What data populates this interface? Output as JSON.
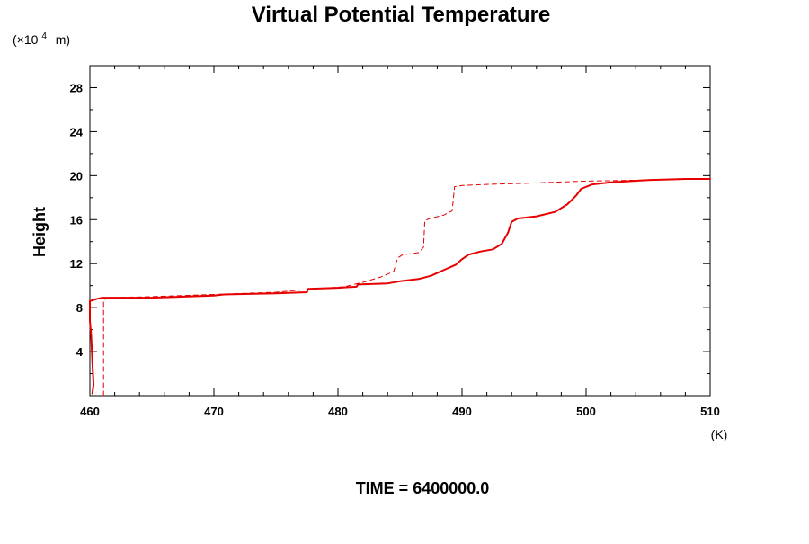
{
  "chart_data": {
    "type": "line",
    "title": "Virtual Potential Temperature",
    "xlabel": "(K)",
    "ylabel": "Height",
    "y_unit_prefix": "(×10",
    "y_unit_exponent": "4",
    "y_unit_suffix": "m)",
    "footer": "TIME = 6400000.0",
    "xlim": [
      460,
      510
    ],
    "ylim": [
      0,
      30
    ],
    "x_ticks": [
      460,
      470,
      480,
      490,
      500,
      510
    ],
    "x_tick_labels": [
      "460",
      "470",
      "480",
      "490",
      "500",
      "510"
    ],
    "y_ticks": [
      4,
      8,
      12,
      16,
      20,
      24,
      28
    ],
    "y_tick_labels": [
      "4",
      "8",
      "12",
      "16",
      "20",
      "24",
      "28"
    ],
    "grid": false,
    "series_color": "#e60000",
    "series": [
      {
        "style": "solid",
        "points": [
          [
            460.2,
            0.2
          ],
          [
            460.3,
            1.0
          ],
          [
            460.2,
            3.0
          ],
          [
            460.1,
            5.5
          ],
          [
            460.0,
            6.8
          ],
          [
            460.0,
            8.6
          ],
          [
            460.6,
            8.8
          ],
          [
            461.0,
            8.9
          ],
          [
            465.0,
            8.9
          ],
          [
            470.0,
            9.1
          ],
          [
            470.8,
            9.2
          ],
          [
            475.0,
            9.3
          ],
          [
            477.5,
            9.4
          ],
          [
            477.6,
            9.7
          ],
          [
            480.0,
            9.8
          ],
          [
            481.5,
            9.9
          ],
          [
            481.6,
            10.1
          ],
          [
            484.0,
            10.2
          ],
          [
            485.0,
            10.4
          ],
          [
            486.5,
            10.6
          ],
          [
            487.5,
            10.9
          ],
          [
            488.5,
            11.4
          ],
          [
            489.5,
            11.9
          ],
          [
            490.0,
            12.4
          ],
          [
            490.5,
            12.8
          ],
          [
            491.5,
            13.1
          ],
          [
            492.5,
            13.3
          ],
          [
            493.2,
            13.8
          ],
          [
            493.7,
            14.8
          ],
          [
            494.0,
            15.8
          ],
          [
            494.5,
            16.1
          ],
          [
            496.0,
            16.3
          ],
          [
            497.5,
            16.7
          ],
          [
            498.5,
            17.4
          ],
          [
            499.2,
            18.2
          ],
          [
            499.6,
            18.8
          ],
          [
            500.5,
            19.2
          ],
          [
            502.0,
            19.4
          ],
          [
            505.0,
            19.6
          ],
          [
            508.0,
            19.7
          ],
          [
            510.0,
            19.7
          ]
        ]
      },
      {
        "style": "dashed",
        "points": [
          [
            461.1,
            0.0
          ],
          [
            461.1,
            8.7
          ],
          [
            461.5,
            8.9
          ],
          [
            465.0,
            9.0
          ],
          [
            470.0,
            9.2
          ],
          [
            475.0,
            9.4
          ],
          [
            478.0,
            9.7
          ],
          [
            480.5,
            9.9
          ],
          [
            482.0,
            10.3
          ],
          [
            483.5,
            10.8
          ],
          [
            484.5,
            11.3
          ],
          [
            484.8,
            12.5
          ],
          [
            485.2,
            12.8
          ],
          [
            486.5,
            13.0
          ],
          [
            486.9,
            13.5
          ],
          [
            487.0,
            15.9
          ],
          [
            487.4,
            16.1
          ],
          [
            488.5,
            16.4
          ],
          [
            489.2,
            16.8
          ],
          [
            489.4,
            19.0
          ],
          [
            490.0,
            19.1
          ],
          [
            492.0,
            19.2
          ],
          [
            495.0,
            19.3
          ],
          [
            500.0,
            19.5
          ],
          [
            505.0,
            19.6
          ],
          [
            510.0,
            19.7
          ]
        ]
      }
    ]
  }
}
